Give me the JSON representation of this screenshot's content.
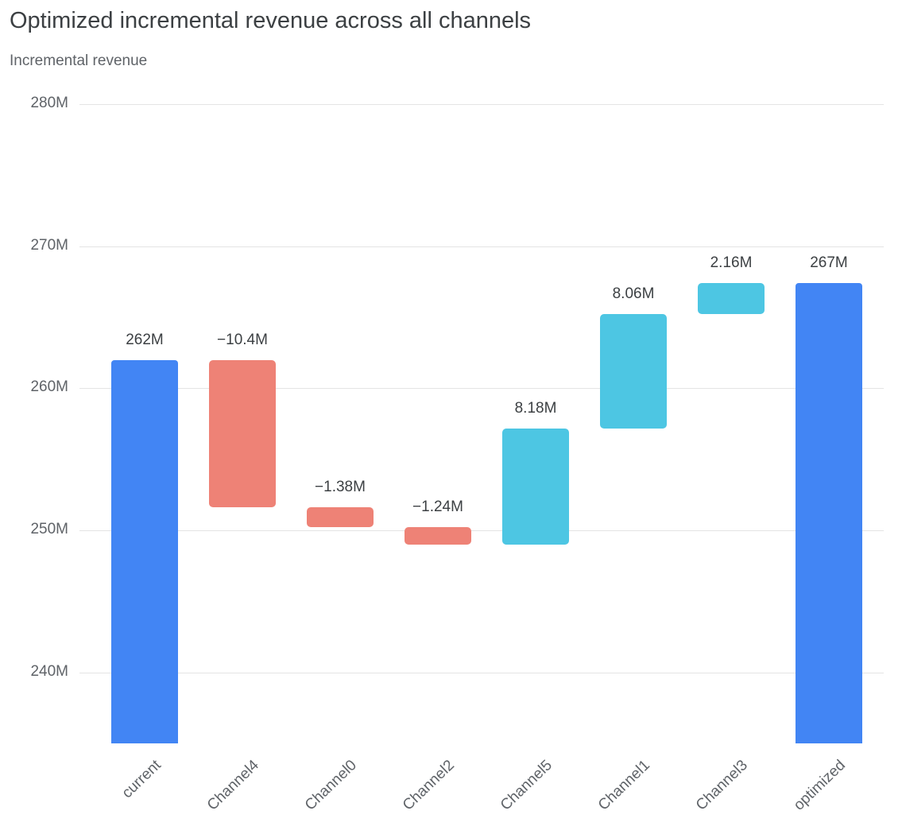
{
  "chart": {
    "title": "Optimized incremental revenue across all channels",
    "subtitle": "Incremental revenue"
  },
  "chart_data": {
    "type": "waterfall",
    "title": "Optimized incremental revenue across all channels",
    "ylabel": "Incremental revenue",
    "categories": [
      "current",
      "Channel4",
      "Channel0",
      "Channel2",
      "Channel5",
      "Channel1",
      "Channel3",
      "optimized"
    ],
    "measures": [
      "absolute",
      "relative",
      "relative",
      "relative",
      "relative",
      "relative",
      "relative",
      "total"
    ],
    "values": [
      262,
      -10.4,
      -1.38,
      -1.24,
      8.18,
      8.06,
      2.16,
      267.38
    ],
    "bar_labels": [
      "262M",
      "−10.4M",
      "−1.38M",
      "−1.24M",
      "8.18M",
      "8.06M",
      "2.16M",
      "267M"
    ],
    "yticks": [
      {
        "label": "240M",
        "value": 240
      },
      {
        "label": "250M",
        "value": 250
      },
      {
        "label": "260M",
        "value": 260
      },
      {
        "label": "270M",
        "value": 270
      },
      {
        "label": "280M",
        "value": 280
      }
    ],
    "ylim": [
      235,
      281
    ],
    "grid": true,
    "legend": "none",
    "colors": {
      "total": "#4285F4",
      "decrease": "#EE8276",
      "increase": "#4DC6E3"
    }
  }
}
